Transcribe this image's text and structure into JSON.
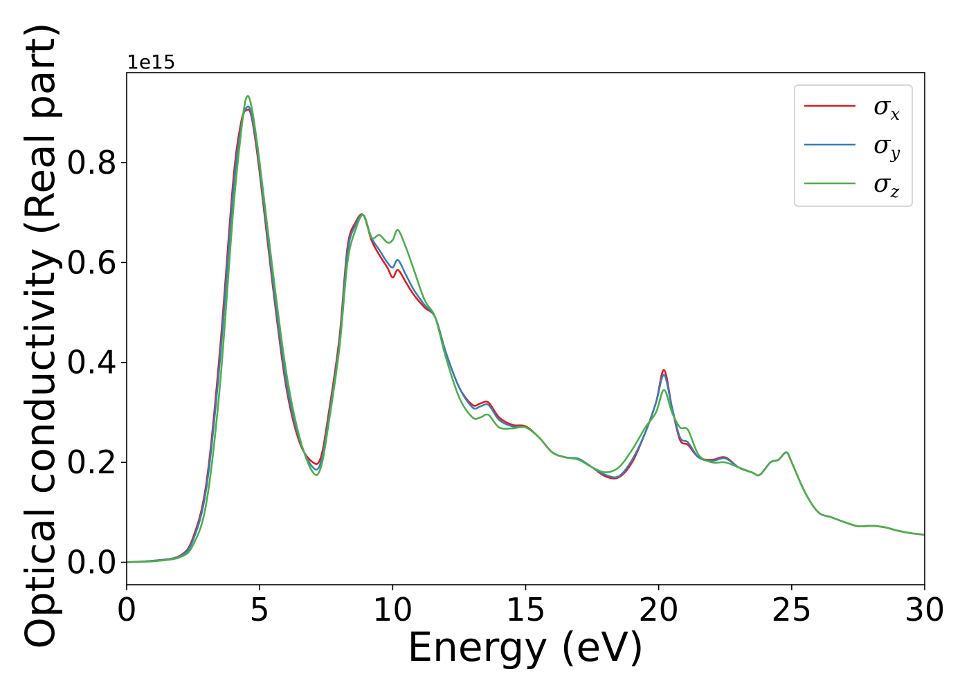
{
  "chart_data": {
    "type": "line",
    "xlabel": "Energy (eV)",
    "ylabel": "Optical conductivity (Real part)",
    "y_offset_text": "1e15",
    "xlim": [
      0,
      30
    ],
    "ylim": [
      -0.045,
      0.98
    ],
    "xticks": [
      0,
      5,
      10,
      15,
      20,
      25,
      30
    ],
    "xtick_labels": [
      "0",
      "5",
      "10",
      "15",
      "20",
      "25",
      "30"
    ],
    "yticks": [
      0.0,
      0.2,
      0.4,
      0.6,
      0.8
    ],
    "ytick_labels": [
      "0.0",
      "0.2",
      "0.4",
      "0.6",
      "0.8"
    ],
    "grid": false,
    "legend_position": "top-right",
    "series": [
      {
        "name": "σx",
        "symbol": "σ",
        "sub": "x",
        "color": "#e41a1c",
        "x": [
          0,
          1,
          2,
          2.5,
          3,
          3.5,
          4,
          4.3,
          4.5,
          4.7,
          5,
          5.5,
          6,
          6.5,
          7,
          7.3,
          7.6,
          8,
          8.3,
          8.6,
          8.9,
          9.2,
          9.5,
          9.8,
          10,
          10.2,
          10.5,
          10.8,
          11.2,
          11.6,
          12,
          12.5,
          13,
          13.3,
          13.6,
          14,
          14.5,
          15,
          15.5,
          16,
          16.5,
          17,
          17.5,
          18,
          18.5,
          19,
          19.5,
          19.9,
          20.2,
          20.5,
          20.8,
          21.1,
          21.5,
          22,
          22.5,
          23,
          23.5,
          23.8,
          24.2,
          24.5,
          24.8,
          25,
          25.5,
          26,
          26.5,
          27,
          27.5,
          28,
          28.5,
          29,
          29.5,
          30
        ],
        "y": [
          0.0,
          0.003,
          0.013,
          0.05,
          0.16,
          0.42,
          0.76,
          0.88,
          0.905,
          0.89,
          0.78,
          0.55,
          0.35,
          0.24,
          0.2,
          0.21,
          0.3,
          0.45,
          0.63,
          0.68,
          0.695,
          0.645,
          0.615,
          0.59,
          0.57,
          0.585,
          0.56,
          0.535,
          0.51,
          0.49,
          0.42,
          0.35,
          0.315,
          0.318,
          0.32,
          0.29,
          0.275,
          0.272,
          0.25,
          0.22,
          0.21,
          0.206,
          0.19,
          0.172,
          0.17,
          0.2,
          0.26,
          0.32,
          0.385,
          0.31,
          0.245,
          0.235,
          0.21,
          0.205,
          0.21,
          0.19,
          0.18,
          0.175,
          0.2,
          0.205,
          0.22,
          0.2,
          0.14,
          0.1,
          0.09,
          0.08,
          0.072,
          0.073,
          0.07,
          0.063,
          0.058,
          0.055
        ]
      },
      {
        "name": "σy",
        "symbol": "σ",
        "sub": "y",
        "color": "#377eb8",
        "x": [
          0,
          1,
          2,
          2.5,
          3,
          3.5,
          4,
          4.3,
          4.5,
          4.7,
          5,
          5.5,
          6,
          6.5,
          7,
          7.3,
          7.6,
          8,
          8.3,
          8.6,
          8.9,
          9.2,
          9.5,
          9.8,
          10,
          10.2,
          10.5,
          10.8,
          11.2,
          11.6,
          12,
          12.5,
          13,
          13.3,
          13.6,
          14,
          14.5,
          15,
          15.5,
          16,
          16.5,
          17,
          17.5,
          18,
          18.5,
          19,
          19.5,
          19.9,
          20.2,
          20.5,
          20.8,
          21.1,
          21.5,
          22,
          22.5,
          23,
          23.5,
          23.8,
          24.2,
          24.5,
          24.8,
          25,
          25.5,
          26,
          26.5,
          27,
          27.5,
          28,
          28.5,
          29,
          29.5,
          30
        ],
        "y": [
          0.0,
          0.003,
          0.012,
          0.045,
          0.15,
          0.4,
          0.74,
          0.87,
          0.91,
          0.895,
          0.79,
          0.56,
          0.36,
          0.245,
          0.19,
          0.2,
          0.29,
          0.44,
          0.62,
          0.675,
          0.695,
          0.65,
          0.625,
          0.6,
          0.59,
          0.605,
          0.575,
          0.545,
          0.515,
          0.49,
          0.42,
          0.35,
          0.31,
          0.312,
          0.315,
          0.285,
          0.272,
          0.27,
          0.25,
          0.22,
          0.21,
          0.207,
          0.19,
          0.175,
          0.172,
          0.205,
          0.26,
          0.32,
          0.375,
          0.31,
          0.25,
          0.24,
          0.21,
          0.203,
          0.208,
          0.19,
          0.18,
          0.175,
          0.2,
          0.205,
          0.22,
          0.2,
          0.14,
          0.1,
          0.09,
          0.08,
          0.072,
          0.073,
          0.07,
          0.063,
          0.058,
          0.055
        ]
      },
      {
        "name": "σz",
        "symbol": "σ",
        "sub": "z",
        "color": "#4daf4a",
        "x": [
          0,
          1,
          2,
          2.5,
          3,
          3.5,
          4,
          4.3,
          4.5,
          4.7,
          5,
          5.5,
          6,
          6.5,
          7,
          7.3,
          7.6,
          8,
          8.3,
          8.6,
          8.9,
          9.2,
          9.5,
          9.8,
          10,
          10.2,
          10.5,
          10.8,
          11.2,
          11.6,
          12,
          12.5,
          13,
          13.3,
          13.6,
          14,
          14.5,
          15,
          15.5,
          16,
          16.5,
          17,
          17.5,
          18,
          18.5,
          19,
          19.5,
          19.9,
          20.2,
          20.5,
          20.8,
          21.1,
          21.5,
          22,
          22.5,
          23,
          23.5,
          23.8,
          24.2,
          24.5,
          24.8,
          25,
          25.5,
          26,
          26.5,
          27,
          27.5,
          28,
          28.5,
          29,
          29.5,
          30
        ],
        "y": [
          0.0,
          0.002,
          0.01,
          0.035,
          0.12,
          0.35,
          0.7,
          0.86,
          0.93,
          0.91,
          0.8,
          0.58,
          0.38,
          0.25,
          0.18,
          0.19,
          0.28,
          0.43,
          0.6,
          0.665,
          0.695,
          0.65,
          0.655,
          0.64,
          0.645,
          0.665,
          0.63,
          0.585,
          0.525,
          0.49,
          0.41,
          0.33,
          0.29,
          0.29,
          0.295,
          0.27,
          0.268,
          0.27,
          0.25,
          0.22,
          0.21,
          0.205,
          0.19,
          0.18,
          0.19,
          0.225,
          0.27,
          0.3,
          0.345,
          0.3,
          0.27,
          0.265,
          0.215,
          0.2,
          0.2,
          0.19,
          0.18,
          0.175,
          0.2,
          0.205,
          0.22,
          0.2,
          0.14,
          0.1,
          0.09,
          0.08,
          0.072,
          0.073,
          0.07,
          0.063,
          0.058,
          0.055
        ]
      }
    ]
  }
}
